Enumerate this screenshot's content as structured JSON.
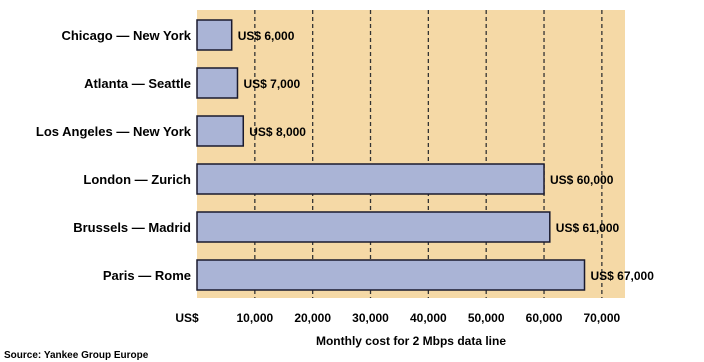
{
  "colors": {
    "plot_background": "#f5d9a6",
    "bar_fill": "#aab4d6",
    "bar_stroke": "#1a1a2e",
    "grid_line": "#333333"
  },
  "chart_data": {
    "type": "bar",
    "orientation": "horizontal",
    "categories": [
      "Chicago — New York",
      "Atlanta — Seattle",
      "Los Angeles — New York",
      "London — Zurich",
      "Brussels — Madrid",
      "Paris — Rome"
    ],
    "values": [
      6000,
      7000,
      8000,
      60000,
      61000,
      67000
    ],
    "data_labels": [
      "US$ 6,000",
      "US$ 7,000",
      "US$ 8,000",
      "US$ 60,000",
      "US$ 61,000",
      "US$ 67,000"
    ],
    "x_ticks": [
      10000,
      20000,
      30000,
      40000,
      50000,
      60000,
      70000
    ],
    "x_tick_labels": [
      "US$",
      "10,000",
      "20,000",
      "30,000",
      "40,000",
      "50,000",
      "60,000",
      "70,000"
    ],
    "xlabel": "Monthly cost for 2 Mbps data line",
    "xlim": [
      0,
      74000
    ],
    "grid": "vertical dashed",
    "source": "Source: Yankee Group Europe"
  }
}
